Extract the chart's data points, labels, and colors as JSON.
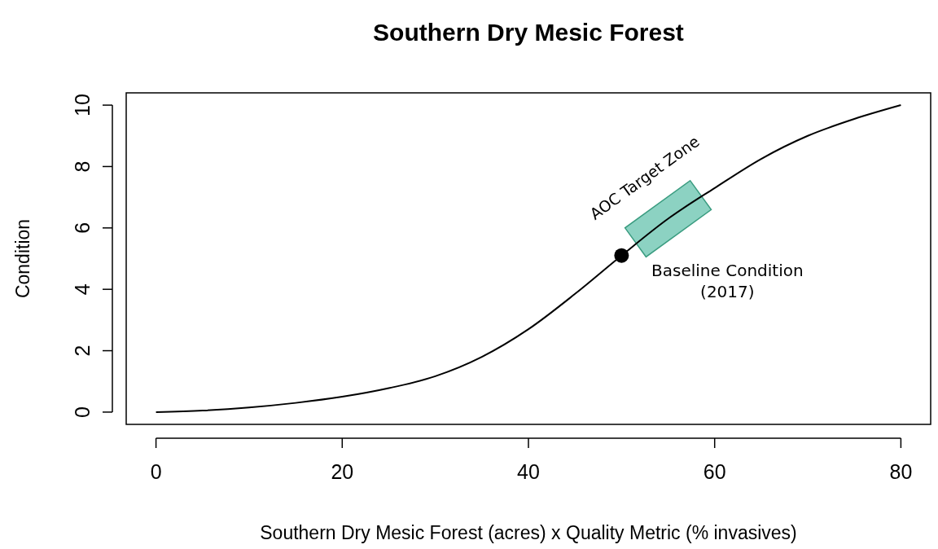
{
  "chart_data": {
    "type": "line",
    "title": "Southern Dry Mesic Forest",
    "xlabel": "Southern Dry Mesic Forest (acres) x Quality Metric (% invasives)",
    "ylabel": "Condition",
    "xlim": [
      -3.2,
      83.2
    ],
    "ylim": [
      -0.4,
      10.4
    ],
    "xticks": [
      0,
      20,
      40,
      60,
      80
    ],
    "yticks": [
      0,
      2,
      4,
      6,
      8,
      10
    ],
    "series": [
      {
        "color": "#000000",
        "x": [
          0,
          5,
          10,
          15,
          20,
          25,
          30,
          35,
          40,
          45,
          50,
          55,
          60,
          65,
          70,
          75,
          80
        ],
        "values": [
          0,
          0.05,
          0.15,
          0.3,
          0.5,
          0.78,
          1.17,
          1.8,
          2.7,
          3.85,
          5.1,
          6.3,
          7.3,
          8.25,
          9.0,
          9.55,
          10
        ]
      },
      {
        "type": "scatter",
        "color": "#000000",
        "marker": "circle",
        "x": [
          50
        ],
        "values": [
          5.1
        ]
      }
    ],
    "annotations": [
      {
        "text": "AOC Target Zone",
        "x": 55,
        "y": 6.3
      },
      {
        "text": "Baseline Condition\n(2017)",
        "x": 50,
        "y": 5.1
      }
    ]
  }
}
